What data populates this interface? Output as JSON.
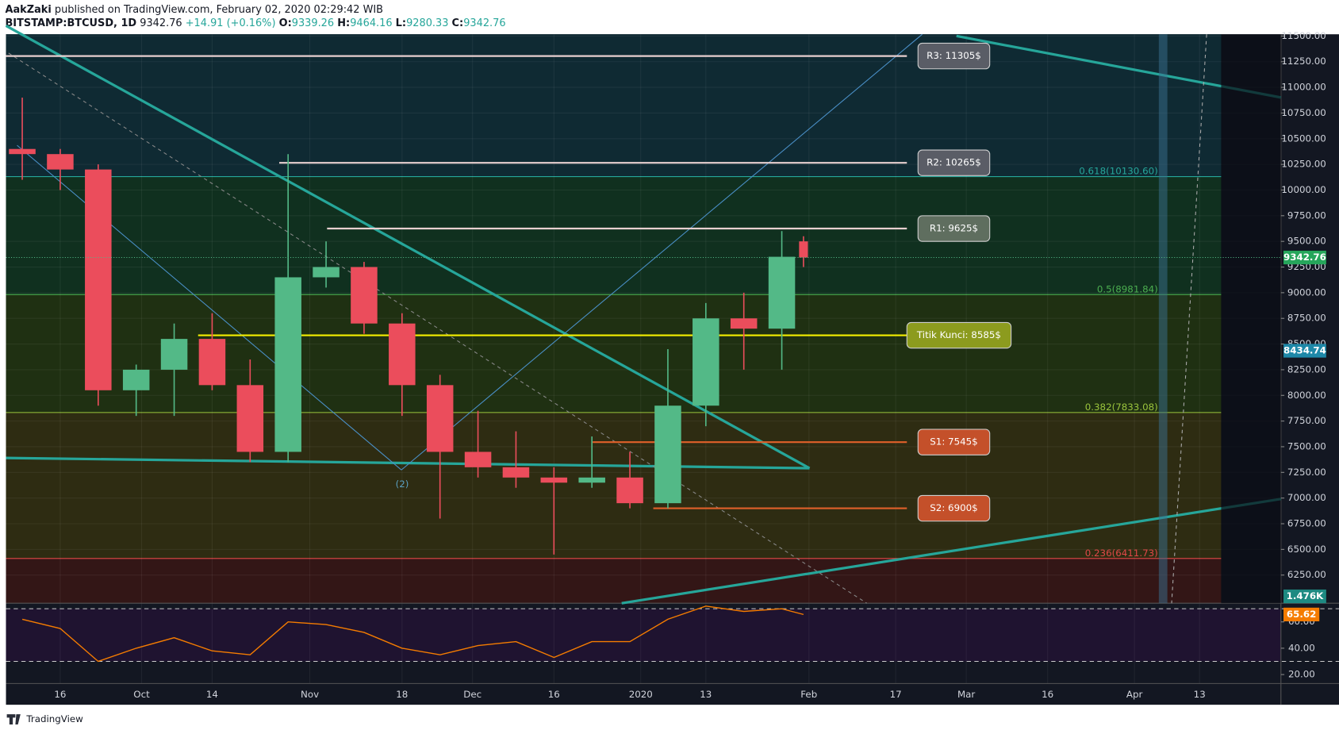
{
  "header": {
    "author": "AakZaki",
    "published": "published on TradingView.com, February 02, 2020 02:29:42 WIB",
    "symbol": "BITSTAMP:BTCUSD, 1D",
    "last": "9342.76",
    "change": "+14.91 (+0.16%)",
    "o_label": "O:",
    "o": "9339.26",
    "h_label": "H:",
    "h": "9464.16",
    "l_label": "L:",
    "l": "9280.33",
    "c_label": "C:",
    "c": "9342.76"
  },
  "chart_data": {
    "type": "candlestick",
    "x": [
      8,
      15,
      22,
      29,
      36,
      43,
      50,
      57,
      64,
      71,
      78,
      85,
      92,
      99,
      106,
      113,
      120,
      127,
      134,
      141,
      148,
      152
    ],
    "open": [
      10400,
      10350,
      10200,
      8050,
      8250,
      8550,
      8100,
      7450,
      9150,
      9250,
      8700,
      8100,
      7450,
      7300,
      7200,
      7150,
      7200,
      6950,
      7900,
      8750,
      8650,
      9500
    ],
    "high": [
      10900,
      10400,
      10250,
      8300,
      8700,
      8800,
      8350,
      10350,
      9500,
      9300,
      8800,
      8200,
      7850,
      7650,
      7300,
      7600,
      7450,
      8450,
      8900,
      9000,
      9600,
      9550
    ],
    "low": [
      10100,
      10000,
      7900,
      7800,
      7800,
      8050,
      7350,
      7350,
      9050,
      8600,
      7800,
      6800,
      7200,
      7100,
      6450,
      7100,
      6900,
      6900,
      7700,
      8250,
      8250,
      9250
    ],
    "close": [
      10350,
      10200,
      8050,
      8250,
      8550,
      8100,
      7450,
      9150,
      9250,
      8700,
      8100,
      7450,
      7300,
      7200,
      7150,
      7200,
      6950,
      7900,
      8750,
      8650,
      9350,
      9342.76
    ],
    "xlim": [
      5,
      240
    ],
    "xticks": [
      {
        "value": 15,
        "label": "16"
      },
      {
        "value": 30,
        "label": "Oct"
      },
      {
        "value": 43,
        "label": "14"
      },
      {
        "value": 61,
        "label": "Nov"
      },
      {
        "value": 78,
        "label": "18"
      },
      {
        "value": 91,
        "label": "Dec"
      },
      {
        "value": 106,
        "label": "16"
      },
      {
        "value": 122,
        "label": "2020"
      },
      {
        "value": 134,
        "label": "13"
      },
      {
        "value": 153,
        "label": "Feb"
      },
      {
        "value": 169,
        "label": "17"
      },
      {
        "value": 182,
        "label": "Mar"
      },
      {
        "value": 197,
        "label": "16"
      },
      {
        "value": 213,
        "label": "Apr"
      },
      {
        "value": 225,
        "label": "13"
      }
    ],
    "ylim": [
      5976,
      11517
    ],
    "yticks": [
      {
        "value": 6250,
        "label": "6250.00"
      },
      {
        "value": 6500,
        "label": "6500.00"
      },
      {
        "value": 6750,
        "label": "6750.00"
      },
      {
        "value": 7000,
        "label": "7000.00"
      },
      {
        "value": 7250,
        "label": "7250.00"
      },
      {
        "value": 7500,
        "label": "7500.00"
      },
      {
        "value": 7750,
        "label": "7750.00"
      },
      {
        "value": 8000,
        "label": "8000.00"
      },
      {
        "value": 8250,
        "label": "8250.00"
      },
      {
        "value": 8500,
        "label": "8500.00"
      },
      {
        "value": 8750,
        "label": "8750.00"
      },
      {
        "value": 9000,
        "label": "9000.00"
      },
      {
        "value": 9250,
        "label": "9250.00"
      },
      {
        "value": 9500,
        "label": "9500.00"
      },
      {
        "value": 9750,
        "label": "9750.00"
      },
      {
        "value": 10000,
        "label": "10000.00"
      },
      {
        "value": 10250,
        "label": "10250.00"
      },
      {
        "value": 10500,
        "label": "10500.00"
      },
      {
        "value": 10750,
        "label": "10750.00"
      },
      {
        "value": 11000,
        "label": "11000.00"
      },
      {
        "value": 11250,
        "label": "11250.00"
      },
      {
        "value": 11500,
        "label": "11500.00"
      }
    ],
    "up_color": "#53b987",
    "down_color": "#eb4d5c",
    "grid": true,
    "levels": [
      {
        "label": "R3: 11305$",
        "value": 11305
      },
      {
        "label": "R2: 10265$",
        "value": 10265
      },
      {
        "label": "R1: 9625$",
        "value": 9625
      },
      {
        "label": "Titik Kunci: 8585$",
        "value": 8585
      },
      {
        "label": "S1: 7545$",
        "value": 7545
      },
      {
        "label": "S2: 6900$",
        "value": 6900
      }
    ],
    "fib": [
      {
        "label": "0.618(10130.60)",
        "value": 10130.6
      },
      {
        "label": "0.5(8981.84)",
        "value": 8981.84
      },
      {
        "label": "0.382(7833.08)",
        "value": 7833.08
      },
      {
        "label": "0.236(6411.73)",
        "value": 6411.73
      }
    ],
    "price_labels": [
      9342.76,
      8434.74
    ],
    "volume_label": "1.476K",
    "annotation": "(2)",
    "rsi": {
      "values": [
        62,
        55,
        30,
        40,
        48,
        38,
        35,
        60,
        58,
        52,
        40,
        35,
        42,
        45,
        33,
        45,
        45,
        62,
        72,
        68,
        70,
        65.62
      ],
      "ylim": [
        13.2,
        74.2
      ],
      "yticks": [
        {
          "value": 20,
          "label": "20.00"
        },
        {
          "value": 40,
          "label": "40.00"
        },
        {
          "value": 60,
          "label": "60.00"
        }
      ],
      "bands": [
        70,
        30
      ],
      "last": 65.62,
      "color": "#f57c00"
    }
  },
  "footer": "TradingView"
}
